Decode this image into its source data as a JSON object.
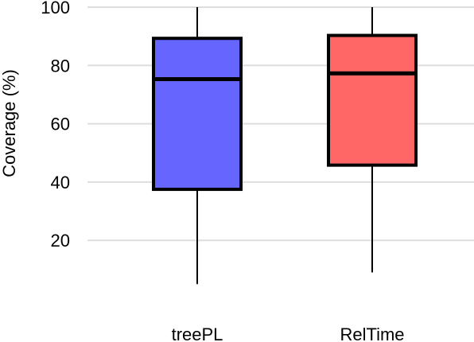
{
  "chart_data": {
    "type": "boxplot",
    "title": "",
    "xlabel": "",
    "ylabel": "Coverage (%)",
    "ylim": [
      0,
      100
    ],
    "yticks": [
      20,
      40,
      60,
      80,
      100
    ],
    "grid": "horizontal",
    "categories": [
      "treePL",
      "RelTime"
    ],
    "boxes": [
      {
        "category": "treePL",
        "min": 5,
        "q1": 37.5,
        "median": 75.3,
        "q3": 89.3,
        "max": 100,
        "color": "#6666ff"
      },
      {
        "category": "RelTime",
        "min": 9,
        "q1": 45.8,
        "median": 77.3,
        "q3": 90.3,
        "max": 100,
        "color": "#ff6666"
      }
    ]
  }
}
